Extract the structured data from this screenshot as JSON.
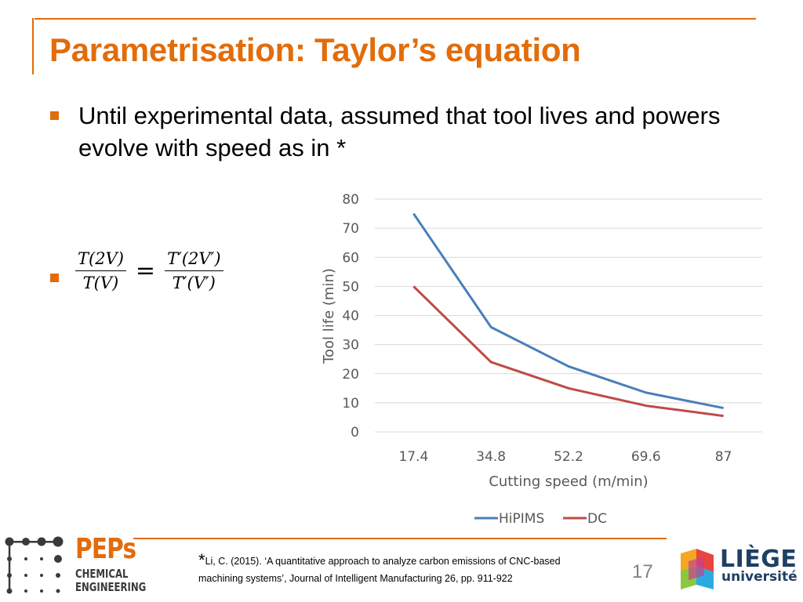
{
  "colors": {
    "accent": "#e36c0a",
    "bullet": "#e36c0a",
    "hipims": "#4a7ebb",
    "dc": "#be4b48",
    "gridline": "#d9d9d9",
    "axis_text": "#595959",
    "liege_blue": "#1f3f64"
  },
  "slide": {
    "title": "Parametrisation: Taylor’s equation",
    "bullet1": "Until experimental data, assumed that tool lives and powers evolve with speed as in *",
    "formula": {
      "lhs_num": "T(2V)",
      "lhs_den": "T(V)",
      "equals": "=",
      "rhs_num": "T′(2V′)",
      "rhs_den": "T′(V′)"
    },
    "footnote": {
      "marker": "*",
      "text": "Li, C. (2015). ‘A quantitative approach to analyze carbon emissions of CNC-based machining systems’, Journal of Intelligent Manufacturing 26, pp. 911-922"
    },
    "page_number": "17"
  },
  "logos": {
    "peps_name": "PEPs",
    "peps_line1": "CHEMICAL",
    "peps_line2": "ENGINEERING",
    "liege_name": "LIÈGE",
    "liege_sub": "université"
  },
  "chart_data": {
    "type": "line",
    "x": [
      "17.4",
      "34.8",
      "52.2",
      "69.6",
      "87"
    ],
    "series": [
      {
        "name": "HiPIMS",
        "values": [
          75,
          36,
          22.5,
          13.5,
          8.2
        ]
      },
      {
        "name": "DC",
        "values": [
          50,
          24,
          15,
          9,
          5.5
        ]
      }
    ],
    "xlabel": "Cutting speed (m/min)",
    "ylabel": "Tool life (min)",
    "ylim": [
      0,
      80
    ],
    "yticks": [
      0,
      10,
      20,
      30,
      40,
      50,
      60,
      70,
      80
    ],
    "grid": true,
    "legend": "bottom"
  }
}
